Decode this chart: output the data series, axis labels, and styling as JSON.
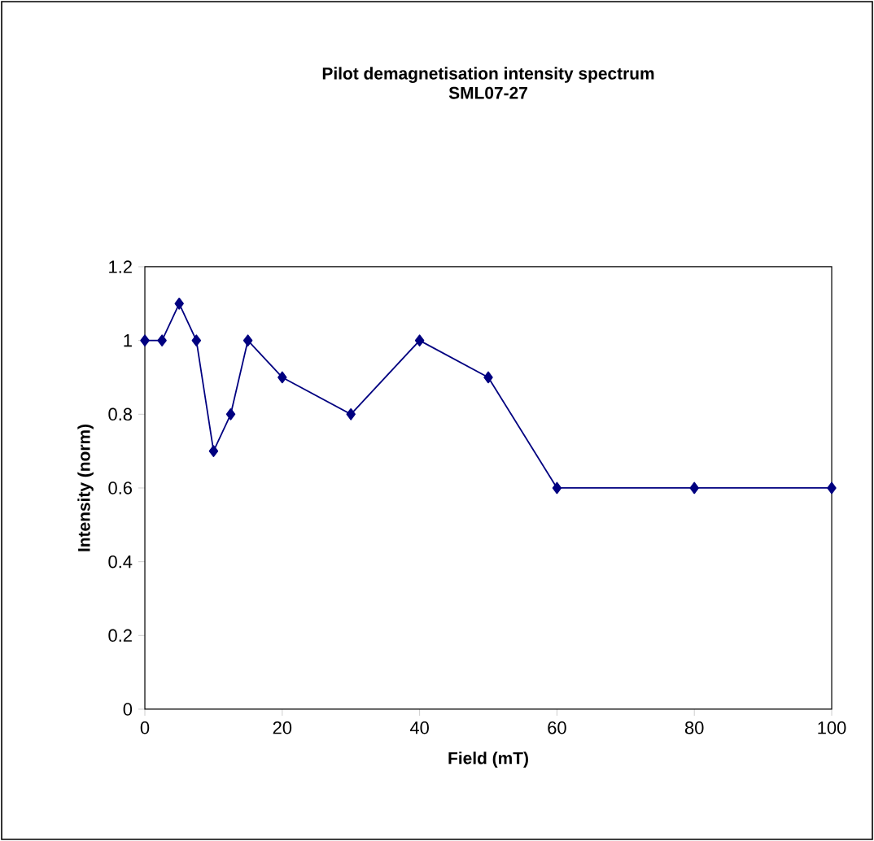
{
  "chart_data": {
    "type": "line",
    "title": "Pilot demagnetisation intensity spectrum",
    "subtitle": "SML07-27",
    "xlabel": "Field (mT)",
    "ylabel": "Intensity (norm)",
    "x": [
      0,
      2.5,
      5,
      7.5,
      10,
      12.5,
      15,
      20,
      30,
      40,
      50,
      60,
      80,
      100
    ],
    "series": [
      {
        "color": "#000080",
        "values": [
          1,
          1,
          1.1,
          1,
          0.7,
          0.8,
          1,
          0.9,
          0.8,
          1,
          0.9,
          0.6,
          0.6,
          0.6
        ]
      }
    ],
    "xlim": [
      0,
      100
    ],
    "xticks": [
      0,
      20,
      40,
      60,
      80,
      100
    ],
    "ylim": [
      0,
      1.2
    ],
    "yticks": [
      0,
      0.2,
      0.4,
      0.6,
      0.8,
      1,
      1.2
    ],
    "grid": false,
    "marker": "diamond",
    "line_style": "solid"
  }
}
